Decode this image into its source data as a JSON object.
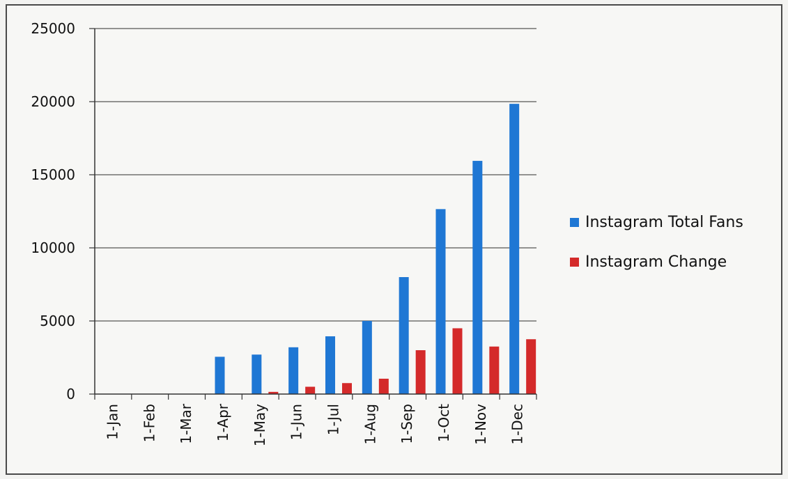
{
  "chart_data": {
    "type": "bar",
    "categories": [
      "1-Jan",
      "1-Feb",
      "1-Mar",
      "1-Apr",
      "1-May",
      "1-Jun",
      "1-Jul",
      "1-Aug",
      "1-Sep",
      "1-Oct",
      "1-Nov",
      "1-Dec"
    ],
    "series": [
      {
        "name": "Instagram Total Fans",
        "color": "#1f77d4",
        "values": [
          0,
          0,
          0,
          2550,
          2700,
          3200,
          3950,
          5000,
          8000,
          12650,
          15950,
          19850
        ]
      },
      {
        "name": "Instagram Change",
        "color": "#d42a2a",
        "values": [
          0,
          0,
          0,
          0,
          150,
          500,
          750,
          1050,
          3000,
          4500,
          3250,
          3750
        ]
      }
    ],
    "yticks": [
      "0",
      "5000",
      "10000",
      "15000",
      "20000",
      "25000"
    ],
    "ylim": [
      0,
      25000
    ],
    "grid": true,
    "legend_position": "right"
  }
}
